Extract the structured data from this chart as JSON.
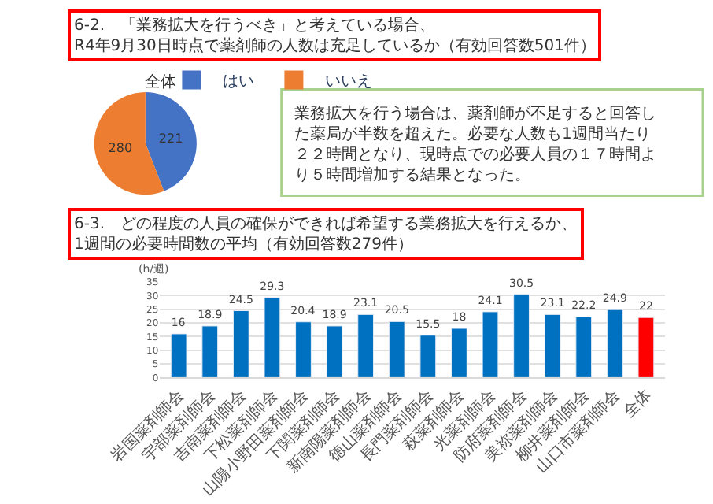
{
  "chart_data": [
    {
      "type": "pie",
      "title": "6-2.　「業務拡大を行うべき」と考えている場合、\nR4年9月30日時点で薬剤師の人数は充足しているか（有効回答数501件）",
      "subtitle": "全体",
      "categories": [
        "はい",
        "いいえ"
      ],
      "values": [
        221,
        280
      ],
      "colors": [
        "#4472c4",
        "#ed7d31"
      ],
      "data_labels": true,
      "legend": "top"
    },
    {
      "type": "other",
      "annotations": [
        "業務拡大を行う場合は、薬剤師が不足すると回答した薬局が半数を超えた。必要な人数も1週間当たり２２時間となり、現時点での必要人員の１７時間より５時間増加する結果となった。"
      ]
    },
    {
      "type": "bar",
      "title": "6-3.　どの程度の人員の確保ができれば希望する業務拡大を行えるか、\n1週間の必要時間数の平均（有効回答数279件）",
      "ylabel": "(h/週)",
      "categories": [
        "岩国薬剤師会",
        "宇部薬剤師会",
        "吉南薬剤師会",
        "下松薬剤師会",
        "山陽小野田薬剤師会",
        "下関薬剤師会",
        "新南陽薬剤師会",
        "徳山薬剤師会",
        "長門薬剤師会",
        "萩薬剤師会",
        "光薬剤師会",
        "防府薬剤師会",
        "美祢薬剤師会",
        "柳井薬剤師会",
        "山口市薬剤師会",
        "全体"
      ],
      "values": [
        16,
        18.9,
        24.5,
        29.3,
        20.4,
        18.9,
        23.1,
        20.5,
        15.5,
        18,
        24.1,
        30.5,
        23.1,
        22.2,
        24.9,
        22
      ],
      "colors": [
        "#0070c0",
        "#0070c0",
        "#0070c0",
        "#0070c0",
        "#0070c0",
        "#0070c0",
        "#0070c0",
        "#0070c0",
        "#0070c0",
        "#0070c0",
        "#0070c0",
        "#0070c0",
        "#0070c0",
        "#0070c0",
        "#0070c0",
        "#ff0000"
      ],
      "ylim": [
        0,
        35
      ],
      "yticks": [
        0,
        5,
        10,
        15,
        20,
        25,
        30,
        35
      ],
      "grid": "y",
      "data_labels": true
    }
  ]
}
